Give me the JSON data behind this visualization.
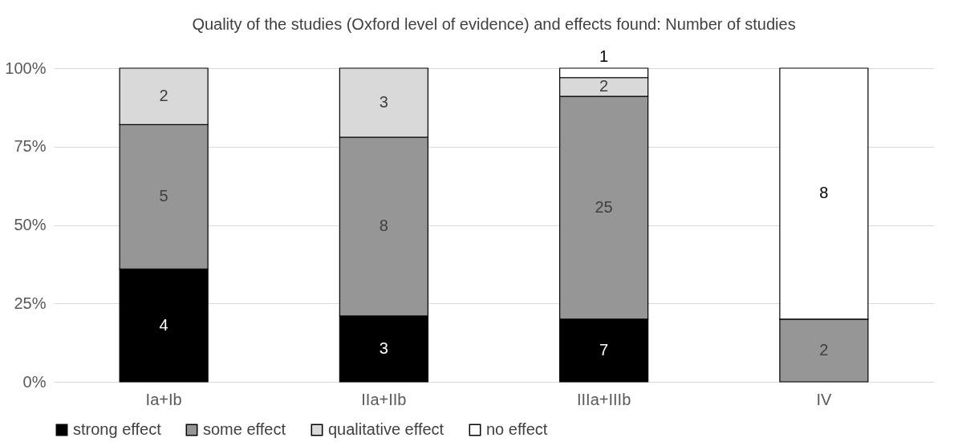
{
  "chart_data": {
    "type": "bar",
    "title": "Quality of the studies (Oxford level of evidence) and effects found: Number of studies",
    "categories": [
      "Ia+Ib",
      "IIa+IIb",
      "IIIa+IIIb",
      "IV"
    ],
    "stacked": true,
    "series": [
      {
        "name": "strong effect",
        "color": "#000000",
        "values": [
          36,
          21,
          20,
          null
        ]
      },
      {
        "name": "some effect",
        "color": "#969696",
        "values": [
          46,
          57,
          71,
          20
        ]
      },
      {
        "name": "qualitative effect",
        "color": "#d9d9d9",
        "values": [
          18,
          22,
          6,
          null
        ]
      },
      {
        "name": "no effect",
        "color": "#ffffff",
        "values": [
          null,
          null,
          3,
          80
        ]
      }
    ],
    "annotations": [
      "4",
      "5",
      "2",
      "3",
      "8",
      "3",
      "7",
      "25",
      "2",
      "1",
      "2",
      "8"
    ],
    "ylim": [
      0,
      100
    ],
    "yticks": [
      {
        "value": 0,
        "label": "0%"
      },
      {
        "value": 25,
        "label": "25%"
      },
      {
        "value": 50,
        "label": "50%"
      },
      {
        "value": 75,
        "label": "75%"
      },
      {
        "value": 100,
        "label": "100%"
      }
    ],
    "grid": "y",
    "legend": "bottom"
  }
}
